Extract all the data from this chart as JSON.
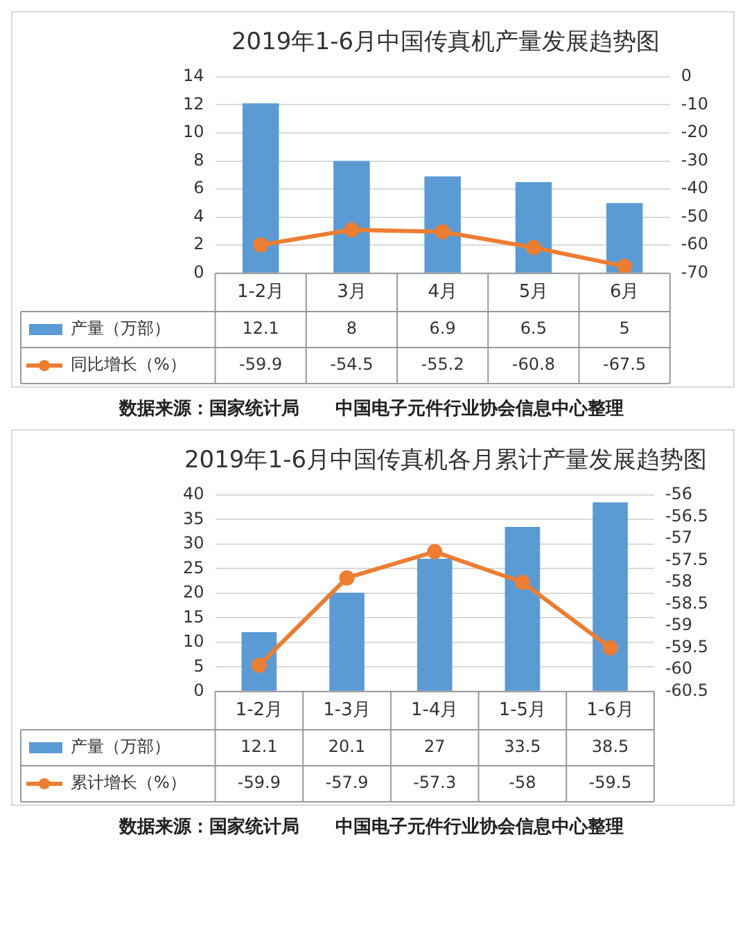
{
  "chart_data": [
    {
      "type": "bar",
      "title": "2019年1-6月中国传真机产量发展趋势图",
      "categories": [
        "1-2月",
        "3月",
        "4月",
        "5月",
        "6月"
      ],
      "series": [
        {
          "name": "产量（万部）",
          "color": "#5b9bd5",
          "values": [
            12.1,
            8,
            6.9,
            6.5,
            5
          ]
        },
        {
          "name": "同比增长（%）",
          "type": "line",
          "axis": "y2",
          "color": "#ed7d31",
          "values": [
            -59.9,
            -54.5,
            -55.2,
            -60.8,
            -67.5
          ]
        }
      ],
      "ylim": [
        0,
        14
      ],
      "yticks": [
        0,
        2,
        4,
        6,
        8,
        10,
        12,
        14
      ],
      "y2lim": [
        -70,
        0
      ],
      "y2ticks": [
        -70,
        -60,
        -50,
        -40,
        -30,
        -20,
        -10,
        0
      ],
      "grid": "y",
      "legend": "bottom",
      "marker": "circle",
      "data_labels": true,
      "annotations": [
        "数据来源：国家统计局　　中国电子元件行业协会信息中心整理"
      ]
    },
    {
      "type": "bar",
      "title": "2019年1-6月中国传真机各月累计产量发展趋势图",
      "categories": [
        "1-2月",
        "1-3月",
        "1-4月",
        "1-5月",
        "1-6月"
      ],
      "series": [
        {
          "name": "产量（万部）",
          "color": "#5b9bd5",
          "values": [
            12.1,
            20.1,
            27,
            33.5,
            38.5
          ]
        },
        {
          "name": "累计增长（%）",
          "type": "line",
          "axis": "y2",
          "color": "#ed7d31",
          "values": [
            -59.9,
            -57.9,
            -57.3,
            -58,
            -59.5
          ]
        }
      ],
      "ylim": [
        0,
        40
      ],
      "yticks": [
        0,
        5,
        10,
        15,
        20,
        25,
        30,
        35,
        40
      ],
      "y2lim": [
        -60.5,
        -56
      ],
      "y2ticks": [
        -60.5,
        -60,
        -59.5,
        -59,
        -58.5,
        -58,
        -57.5,
        -57,
        -56.5,
        -56
      ],
      "grid": "y",
      "legend": "bottom",
      "marker": "circle",
      "data_labels": true,
      "annotations": [
        "数据来源：国家统计局　　中国电子元件行业协会信息中心整理"
      ]
    }
  ]
}
